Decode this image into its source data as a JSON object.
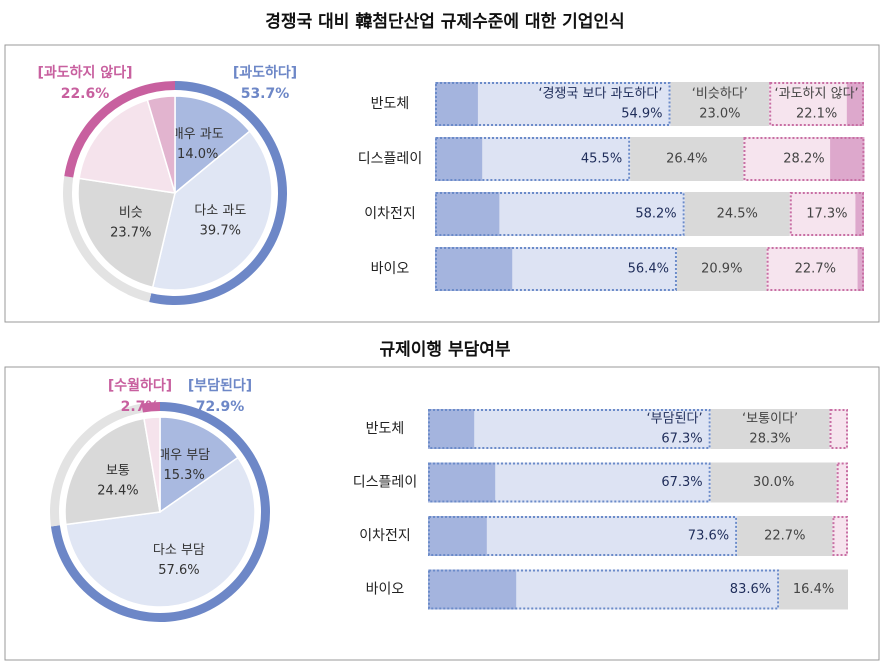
{
  "chart_data": [
    {
      "type": "pie",
      "title": "경쟁국 대비 韓첨단산업 규제수준에 대한 기업인식",
      "categories": [
        "매우 과도",
        "다소 과도",
        "비슷",
        null,
        null
      ],
      "values": [
        14.0,
        39.7,
        23.7,
        18.0,
        4.6
      ],
      "value_labels": [
        "14.0%",
        "39.7%",
        "23.7%",
        null,
        null
      ],
      "colors": [
        "#a9b9e0",
        "#e0e6f4",
        "#d9d9d9",
        "#f5e3ec",
        "#e2b4cf"
      ],
      "groups": {
        "names": [
          "[과도하다]",
          null,
          "[과도하지 않다]"
        ],
        "values": [
          53.7,
          23.7,
          22.6
        ],
        "value_labels": [
          "53.7%",
          null,
          "22.6%"
        ],
        "colors": [
          "#6d87c7",
          "#e3e3e3",
          "#c8609f"
        ]
      }
    },
    {
      "type": "bar",
      "categories": [
        "반도체",
        "디스플레이",
        "이차전지",
        "바이오"
      ],
      "series": [
        {
          "name": "‘경쟁국 보다 과도하다’",
          "color": "#dde3f3",
          "strong_color": "#a4b4de",
          "border_color": "#6b8bc9",
          "values": [
            54.9,
            45.5,
            58.2,
            56.4
          ],
          "value_labels": [
            "54.9%",
            "45.5%",
            "58.2%",
            "56.4%"
          ],
          "strong_values": [
            10,
            11,
            15,
            18
          ]
        },
        {
          "name": "‘비슷하다’",
          "color": "#d9d9d9",
          "values": [
            23.0,
            26.4,
            24.5,
            20.9
          ],
          "value_labels": [
            "23.0%",
            "26.4%",
            "24.5%",
            "20.9%"
          ]
        },
        {
          "name": "‘과도하지 않다’",
          "color": "#f6e4ee",
          "strong_color": "#dda8cc",
          "border_color": "#c86fa4",
          "values": [
            22.1,
            28.2,
            17.3,
            22.7
          ],
          "value_labels": [
            "22.1%",
            "28.2%",
            "17.3%",
            "22.7%"
          ],
          "strong_values": [
            4,
            8,
            2,
            1.5
          ]
        }
      ]
    },
    {
      "type": "pie",
      "title": "규제이행 부담여부",
      "categories": [
        "매우 부담",
        "다소 부담",
        "보통",
        null
      ],
      "values": [
        15.3,
        57.6,
        24.4,
        2.7
      ],
      "value_labels": [
        "15.3%",
        "57.6%",
        "24.4%",
        null
      ],
      "colors": [
        "#a9b9e0",
        "#e0e6f4",
        "#d9d9d9",
        "#f5e3ec"
      ],
      "groups": {
        "names": [
          "[부담된다]",
          null,
          "[수월하다]"
        ],
        "values": [
          72.9,
          24.4,
          2.7
        ],
        "value_labels": [
          "72.9%",
          null,
          "2.7%"
        ],
        "colors": [
          "#6d87c7",
          "#e3e3e3",
          "#c8609f"
        ]
      }
    },
    {
      "type": "bar",
      "categories": [
        "반도체",
        "디스플레이",
        "이차전지",
        "바이오"
      ],
      "series": [
        {
          "name": "‘부담된다’",
          "color": "#dde3f3",
          "strong_color": "#a4b4de",
          "border_color": "#6b8bc9",
          "values": [
            67.3,
            67.3,
            73.6,
            83.6
          ],
          "value_labels": [
            "67.3%",
            "67.3%",
            "73.6%",
            "83.6%"
          ],
          "strong_values": [
            11,
            16,
            14,
            21
          ]
        },
        {
          "name": "‘보통이다’",
          "color": "#d9d9d9",
          "values": [
            28.3,
            30.0,
            22.7,
            16.4
          ],
          "value_labels": [
            "28.3%",
            "30.0%",
            "22.7%",
            "16.4%"
          ]
        },
        {
          "color": "#f6e4ee",
          "border_color": "#c86fa4",
          "values": [
            4.4,
            2.7,
            3.7,
            0
          ]
        }
      ]
    }
  ]
}
